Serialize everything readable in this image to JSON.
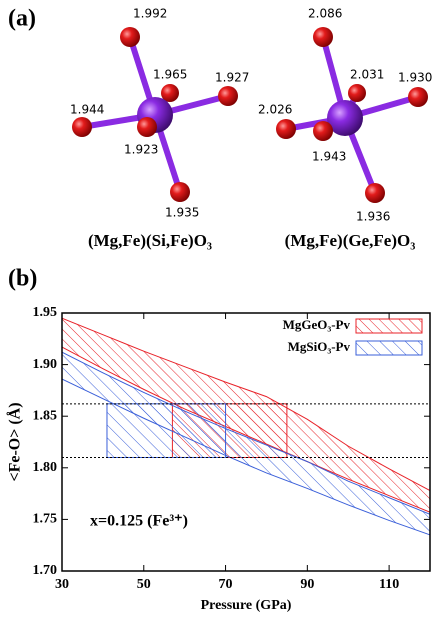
{
  "panel_a": {
    "label": "(a)",
    "structures": [
      {
        "name": "(Mg,Fe)(Si,Fe)O₃",
        "bond_lengths": [
          "1.992",
          "1.965",
          "1.927",
          "1.944",
          "1.923",
          "1.935"
        ]
      },
      {
        "name": "(Mg,Fe)(Ge,Fe)O₃",
        "bond_lengths": [
          "2.086",
          "2.031",
          "1.930",
          "2.026",
          "1.943",
          "1.936"
        ]
      }
    ]
  },
  "chart_data": {
    "type": "band",
    "label": "(b)",
    "x_label": "Pressure (GPa)",
    "y_label": "<Fe-O> (Å)",
    "annotation": "x=0.125 (Fe³⁺)",
    "xlim": [
      30,
      120
    ],
    "xticks": [
      30,
      50,
      70,
      90,
      110
    ],
    "ylim": [
      1.7,
      1.95
    ],
    "yticks": [
      {
        "value": 1.7,
        "label": "1.70"
      },
      1.75,
      {
        "value": 1.8,
        "label": "1.80"
      },
      1.85,
      {
        "value": 1.9,
        "label": "1.90"
      },
      1.95
    ],
    "hlines": [
      1.81,
      1.862
    ],
    "legend": "upper right",
    "series": [
      {
        "name": "MgGeO₃-Pv",
        "color": "#e8232a",
        "x": [
          30,
          40,
          50,
          60,
          70,
          80,
          90,
          100,
          110,
          120
        ],
        "upper": [
          1.945,
          1.929,
          1.913,
          1.898,
          1.883,
          1.869,
          1.847,
          1.821,
          1.799,
          1.778
        ],
        "lower": [
          1.917,
          1.896,
          1.876,
          1.857,
          1.84,
          1.823,
          1.806,
          1.789,
          1.773,
          1.757
        ],
        "box": {
          "x": [
            57,
            85
          ],
          "y": [
            1.81,
            1.862
          ]
        }
      },
      {
        "name": "MgSiO₃-Pv",
        "color": "#3a5fd9",
        "x": [
          30,
          40,
          50,
          60,
          70,
          80,
          90,
          100,
          110,
          120
        ],
        "upper": [
          1.912,
          1.892,
          1.873,
          1.855,
          1.838,
          1.822,
          1.806,
          1.787,
          1.771,
          1.755
        ],
        "lower": [
          1.886,
          1.867,
          1.848,
          1.83,
          1.812,
          1.795,
          1.78,
          1.764,
          1.749,
          1.735
        ],
        "box": {
          "x": [
            41,
            70
          ],
          "y": [
            1.81,
            1.862
          ]
        }
      }
    ]
  }
}
